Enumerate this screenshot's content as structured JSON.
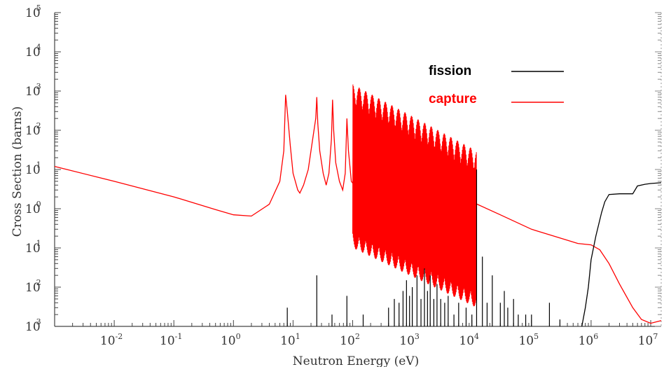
{
  "chart_data": {
    "type": "line",
    "title": "",
    "xlabel": "Neutron Energy (eV)",
    "ylabel": "Cross Section (barns)",
    "xscale": "log",
    "yscale": "log",
    "xlim": [
      0.001,
      15000000
    ],
    "ylim": [
      0.001,
      100000
    ],
    "grid": false,
    "legend_position": "top-right",
    "x_ticks": [
      {
        "base": "10",
        "exp": "-2",
        "value": 0.01
      },
      {
        "base": "10",
        "exp": "-1",
        "value": 0.1
      },
      {
        "base": "10",
        "exp": "0",
        "value": 1
      },
      {
        "base": "10",
        "exp": "1",
        "value": 10
      },
      {
        "base": "10",
        "exp": "2",
        "value": 100
      },
      {
        "base": "10",
        "exp": "3",
        "value": 1000
      },
      {
        "base": "10",
        "exp": "4",
        "value": 10000
      },
      {
        "base": "10",
        "exp": "5",
        "value": 100000
      },
      {
        "base": "10",
        "exp": "6",
        "value": 1000000
      },
      {
        "base": "10",
        "exp": "7",
        "value": 10000000
      }
    ],
    "y_ticks": [
      {
        "base": "10",
        "exp": "5",
        "value": 100000
      },
      {
        "base": "10",
        "exp": "4",
        "value": 10000
      },
      {
        "base": "10",
        "exp": "3",
        "value": 1000
      },
      {
        "base": "10",
        "exp": "2",
        "value": 100
      },
      {
        "base": "10",
        "exp": "1",
        "value": 10
      },
      {
        "base": "10",
        "exp": "0",
        "value": 1
      },
      {
        "base": "10",
        "exp": "1",
        "value": 0.1
      },
      {
        "base": "10",
        "exp": "2",
        "value": 0.01
      },
      {
        "base": "10",
        "exp": "3",
        "value": 0.001
      }
    ],
    "series": [
      {
        "name": "capture",
        "color": "#ff0000",
        "points": [
          [
            0.001,
            12
          ],
          [
            0.01,
            5
          ],
          [
            0.1,
            2
          ],
          [
            0.5,
            0.95
          ],
          [
            1,
            0.7
          ],
          [
            2,
            0.65
          ],
          [
            4,
            1.3
          ],
          [
            6,
            5
          ],
          [
            7,
            30
          ],
          [
            7.5,
            800
          ],
          [
            8,
            300
          ],
          [
            9,
            40
          ],
          [
            10,
            8
          ],
          [
            12,
            3
          ],
          [
            13,
            2.5
          ],
          [
            15,
            4
          ],
          [
            18,
            10
          ],
          [
            21,
            50
          ],
          [
            24,
            200
          ],
          [
            25,
            700
          ],
          [
            26,
            150
          ],
          [
            28,
            30
          ],
          [
            32,
            8
          ],
          [
            36,
            4
          ],
          [
            40,
            8
          ],
          [
            44,
            60
          ],
          [
            46,
            600
          ],
          [
            48,
            100
          ],
          [
            52,
            15
          ],
          [
            60,
            5
          ],
          [
            68,
            3
          ],
          [
            75,
            8
          ],
          [
            80,
            200
          ],
          [
            85,
            30
          ],
          [
            95,
            5
          ],
          [
            150,
            2
          ],
          [
            300,
            1.8
          ],
          [
            1000,
            1.7
          ],
          [
            5000,
            1.6
          ],
          [
            10000,
            1.5
          ],
          [
            30000,
            0.7
          ],
          [
            100000,
            0.3
          ],
          [
            300000,
            0.18
          ],
          [
            600000,
            0.13
          ],
          [
            1000000,
            0.12
          ],
          [
            1400000,
            0.09
          ],
          [
            2000000,
            0.04
          ],
          [
            3000000,
            0.012
          ],
          [
            5000000,
            0.003
          ],
          [
            7000000,
            0.0015
          ],
          [
            10000000,
            0.0012
          ],
          [
            15000000,
            0.0014
          ]
        ],
        "resonance_band": {
          "x_start": 100,
          "x_end": 12000,
          "low_start": 0.1,
          "low_end": 0.003,
          "high_start": 1500,
          "high_end": 30
        }
      },
      {
        "name": "fission",
        "color": "#000000",
        "points": [
          [
            700000,
            0.001
          ],
          [
            800000,
            0.003
          ],
          [
            900000,
            0.01
          ],
          [
            1000000,
            0.05
          ],
          [
            1200000,
            0.2
          ],
          [
            1500000,
            0.8
          ],
          [
            1700000,
            1.5
          ],
          [
            2000000,
            2.3
          ],
          [
            3000000,
            2.4
          ],
          [
            5000000,
            2.4
          ],
          [
            6000000,
            3.8
          ],
          [
            8000000,
            4.2
          ],
          [
            10000000,
            4.4
          ],
          [
            15000000,
            4.6
          ]
        ],
        "spikes": [
          [
            8,
            0.003
          ],
          [
            25,
            0.02
          ],
          [
            45,
            0.002
          ],
          [
            80,
            0.006
          ],
          [
            150,
            0.002
          ],
          [
            250,
            0.001
          ],
          [
            400,
            0.003
          ],
          [
            500,
            0.005
          ],
          [
            600,
            0.004
          ],
          [
            700,
            0.008
          ],
          [
            800,
            0.015
          ],
          [
            900,
            0.006
          ],
          [
            1000,
            0.01
          ],
          [
            1200,
            0.02
          ],
          [
            1400,
            0.005
          ],
          [
            1600,
            0.03
          ],
          [
            1800,
            0.008
          ],
          [
            2000,
            0.02
          ],
          [
            2300,
            0.005
          ],
          [
            2600,
            0.012
          ],
          [
            3000,
            0.005
          ],
          [
            3500,
            0.004
          ],
          [
            4000,
            0.006
          ],
          [
            5000,
            0.002
          ],
          [
            6000,
            0.004
          ],
          [
            8000,
            0.003
          ],
          [
            10000,
            0.002
          ],
          [
            12000,
            10
          ],
          [
            15000,
            0.06
          ],
          [
            18000,
            0.004
          ],
          [
            22000,
            0.02
          ],
          [
            30000,
            0.004
          ],
          [
            35000,
            0.008
          ],
          [
            40000,
            0.003
          ],
          [
            50000,
            0.005
          ],
          [
            60000,
            0.002
          ],
          [
            80000,
            0.002
          ],
          [
            100000,
            0.002
          ],
          [
            200000,
            0.004
          ],
          [
            300000,
            0.0015
          ]
        ]
      }
    ]
  }
}
